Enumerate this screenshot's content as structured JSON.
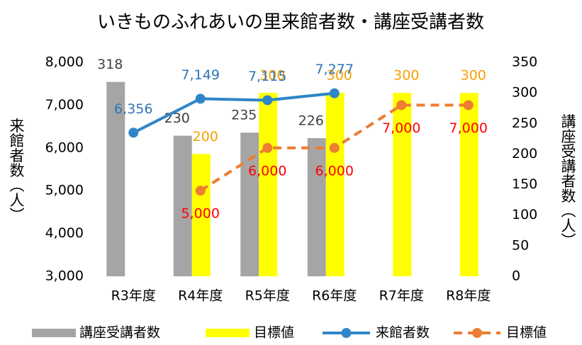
{
  "chart_data": {
    "type": "combo",
    "title": "いきものふれあいの里来館者数・講座受講者数",
    "y_label": "来館者数（人）",
    "y2_label": "講座受講者数（人）",
    "categories": [
      "R3年度",
      "R4年度",
      "R5年度",
      "R6年度",
      "R7年度",
      "R8年度"
    ],
    "ylim": [
      3000,
      8000
    ],
    "yticks": [
      {
        "value": 3000,
        "label": "3,000"
      },
      {
        "value": 4000,
        "label": "4,000"
      },
      {
        "value": 5000,
        "label": "5,000"
      },
      {
        "value": 6000,
        "label": "6,000"
      },
      {
        "value": 7000,
        "label": "7,000"
      },
      {
        "value": 8000,
        "label": "8,000"
      }
    ],
    "y2lim": [
      0,
      350
    ],
    "y2ticks": [
      0,
      50,
      100,
      150,
      200,
      250,
      300,
      350
    ],
    "grid": false,
    "legend": "bottom",
    "series": [
      {
        "name": "講座受講者数",
        "type": "bar",
        "axis": "y2",
        "color": "#a5a5a5",
        "label_color": "#404040",
        "values": [
          318,
          230,
          235,
          226,
          null,
          null
        ]
      },
      {
        "name": "目標値",
        "type": "bar",
        "axis": "y2",
        "color": "#ffff00",
        "label_color": "#f5a000",
        "values": [
          null,
          200,
          300,
          300,
          300,
          300
        ]
      },
      {
        "name": "来館者数",
        "type": "line",
        "axis": "y",
        "color": "#2e86c8",
        "label_color": "#2e75b6",
        "dash": false,
        "values": [
          6356,
          7149,
          7115,
          7277,
          null,
          null
        ],
        "value_labels": [
          "6,356",
          "7,149",
          "7,115",
          "7,277",
          null,
          null
        ]
      },
      {
        "name": "目標値",
        "type": "line",
        "axis": "y",
        "color": "#ed7d31",
        "label_color": "#ff0000",
        "dash": true,
        "values": [
          null,
          5000,
          6000,
          6000,
          7000,
          7000
        ],
        "value_labels": [
          null,
          "5,000",
          "6,000",
          "6,000",
          "7,000",
          "7,000"
        ]
      }
    ]
  }
}
